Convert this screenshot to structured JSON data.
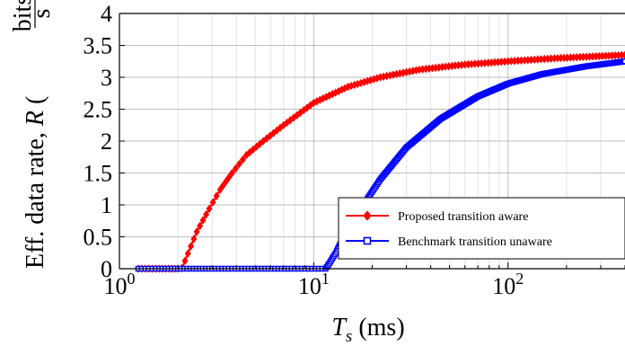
{
  "chart_data": {
    "type": "line",
    "xscale": "log",
    "xlim": [
      1,
      400
    ],
    "ylim": [
      0,
      4
    ],
    "grid": true,
    "legend_position": "bottom-right",
    "title": "",
    "xlabel": {
      "main": "T",
      "sub": "s",
      "unit": "(ms)"
    },
    "ylabel": {
      "main": "Eff. data rate, ",
      "var": "R",
      "unit_num": "bits",
      "unit_den": "s"
    },
    "x_ticks": [
      {
        "value": 1,
        "base": "10",
        "exp": "0"
      },
      {
        "value": 10,
        "base": "10",
        "exp": "1"
      },
      {
        "value": 100,
        "base": "10",
        "exp": "2"
      }
    ],
    "y_ticks": [
      "0",
      "0.5",
      "1",
      "1.5",
      "2",
      "2.5",
      "3",
      "3.5",
      "4"
    ],
    "series": [
      {
        "name": "Proposed transition aware",
        "color": "#ff0000",
        "marker": "diamond",
        "points": [
          [
            1.25,
            0
          ],
          [
            1.6,
            0
          ],
          [
            2.0,
            0
          ],
          [
            2.1,
            0.01
          ],
          [
            2.5,
            0.58
          ],
          [
            2.9,
            0.94
          ],
          [
            3.3,
            1.24
          ],
          [
            3.8,
            1.5
          ],
          [
            4.5,
            1.78
          ],
          [
            5.5,
            2.0
          ],
          [
            7.0,
            2.25
          ],
          [
            10.0,
            2.6
          ],
          [
            15.0,
            2.85
          ],
          [
            22.0,
            3.0
          ],
          [
            35.0,
            3.12
          ],
          [
            60.0,
            3.2
          ],
          [
            100.0,
            3.25
          ],
          [
            180.0,
            3.3
          ],
          [
            400.0,
            3.35
          ]
        ]
      },
      {
        "name": "Benchmark transition unaware",
        "color": "#0000ff",
        "marker": "square",
        "points": [
          [
            1.25,
            0
          ],
          [
            1.6,
            0
          ],
          [
            2.0,
            0
          ],
          [
            3.0,
            0
          ],
          [
            5.0,
            0
          ],
          [
            8.0,
            0
          ],
          [
            11.5,
            0
          ],
          [
            12.0,
            0.08
          ],
          [
            13.0,
            0.25
          ],
          [
            14.0,
            0.45
          ],
          [
            16.0,
            0.75
          ],
          [
            18.0,
            1.0
          ],
          [
            22.0,
            1.4
          ],
          [
            30.0,
            1.9
          ],
          [
            45.0,
            2.35
          ],
          [
            70.0,
            2.7
          ],
          [
            100.0,
            2.9
          ],
          [
            150.0,
            3.05
          ],
          [
            250.0,
            3.17
          ],
          [
            400.0,
            3.25
          ]
        ]
      }
    ]
  }
}
